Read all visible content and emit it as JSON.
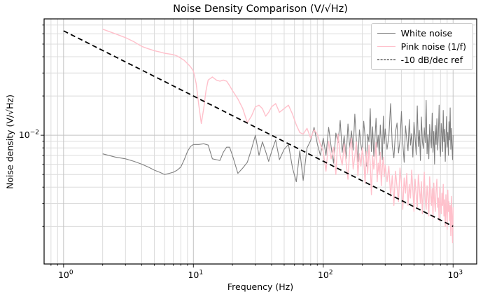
{
  "chart_data": {
    "type": "line",
    "title": "Noise Density Comparison (V/√Hz)",
    "xlabel": "Frequency (Hz)",
    "ylabel": "Noise density (V/√Hz)",
    "x_scale": "log",
    "y_scale": "log",
    "xlim": [
      0.708,
      1520
    ],
    "ylim": [
      0.00103,
      0.078
    ],
    "grid": "both",
    "legend_position": "upper right",
    "colors": {
      "grid_major": "#c3c3c3",
      "grid_minor": "#dcdcdc",
      "spine": "#000000",
      "tick": "#222222",
      "legend_border": "#cccccc"
    },
    "x_major_ticks": [
      {
        "value": 1,
        "base": "10",
        "exp": "0"
      },
      {
        "value": 10,
        "base": "10",
        "exp": "1"
      },
      {
        "value": 100,
        "base": "10",
        "exp": "2"
      },
      {
        "value": 1000,
        "base": "10",
        "exp": "3"
      }
    ],
    "x_minor_ticks": [
      0.8,
      0.9,
      2,
      3,
      4,
      5,
      6,
      7,
      8,
      9,
      20,
      30,
      40,
      50,
      60,
      70,
      80,
      90,
      200,
      300,
      400,
      500,
      600,
      700,
      800,
      900
    ],
    "y_major_ticks": [
      {
        "value": 0.01,
        "base": "10",
        "exp": "−2"
      }
    ],
    "y_minor_ticks": [
      0.002,
      0.003,
      0.004,
      0.005,
      0.006,
      0.007,
      0.008,
      0.009,
      0.02,
      0.03,
      0.04,
      0.05,
      0.06,
      0.07
    ],
    "series": [
      {
        "name": "White noise",
        "color": "#808080",
        "line": "solid",
        "width": 1.1,
        "f": [
          2,
          2.5,
          3,
          3.5,
          4,
          4.5,
          5,
          5.5,
          6,
          6.5,
          7,
          7.5,
          8,
          8.5,
          9,
          9.5,
          10,
          11,
          12,
          13,
          14,
          15,
          16,
          17,
          18,
          19,
          20,
          22,
          24,
          26,
          28,
          30,
          32,
          34,
          36,
          38,
          40,
          43,
          46,
          50,
          54,
          58,
          62,
          66,
          70,
          75,
          80,
          85,
          90,
          95,
          100,
          105,
          110,
          115,
          120,
          125,
          130,
          135,
          140,
          145,
          150,
          155,
          160,
          165,
          170,
          175,
          180,
          185,
          190,
          195,
          200,
          205,
          210,
          215,
          220,
          225,
          230,
          235,
          240,
          245,
          250,
          255,
          260,
          265,
          270,
          275,
          280,
          285,
          290,
          295,
          300,
          310,
          320,
          330,
          340,
          350,
          360,
          370,
          380,
          390,
          400,
          410,
          420,
          430,
          440,
          450,
          460,
          470,
          480,
          490,
          500,
          510,
          520,
          530,
          540,
          550,
          560,
          570,
          580,
          590,
          600,
          610,
          620,
          630,
          640,
          650,
          660,
          670,
          680,
          690,
          700,
          710,
          720,
          730,
          740,
          750,
          760,
          770,
          780,
          790,
          800,
          810,
          820,
          830,
          840,
          850,
          860,
          870,
          880,
          890,
          900,
          910,
          920,
          930,
          940,
          950,
          960,
          970,
          980,
          990,
          1000
        ],
        "v": [
          0.0072,
          0.0068,
          0.0066,
          0.0063,
          0.006,
          0.0057,
          0.0054,
          0.0052,
          0.005,
          0.0051,
          0.0052,
          0.0054,
          0.0057,
          0.0065,
          0.0075,
          0.0082,
          0.0085,
          0.0085,
          0.0086,
          0.0084,
          0.0066,
          0.0065,
          0.0064,
          0.0074,
          0.0081,
          0.0081,
          0.007,
          0.0051,
          0.0056,
          0.0062,
          0.0078,
          0.01,
          0.007,
          0.0089,
          0.0075,
          0.0063,
          0.0075,
          0.0092,
          0.0065,
          0.0078,
          0.0085,
          0.0056,
          0.0044,
          0.0076,
          0.0045,
          0.008,
          0.0091,
          0.0115,
          0.0086,
          0.007,
          0.0095,
          0.007,
          0.0115,
          0.0082,
          0.0061,
          0.0104,
          0.0088,
          0.013,
          0.0074,
          0.0099,
          0.0066,
          0.0122,
          0.008,
          0.0108,
          0.0077,
          0.0145,
          0.0092,
          0.0063,
          0.011,
          0.0085,
          0.0072,
          0.0128,
          0.0097,
          0.0058,
          0.0102,
          0.0089,
          0.016,
          0.0075,
          0.0116,
          0.0069,
          0.0094,
          0.0135,
          0.0081,
          0.01,
          0.007,
          0.012,
          0.009,
          0.0065,
          0.014,
          0.0086,
          0.0112,
          0.0078,
          0.0098,
          0.0175,
          0.0083,
          0.0067,
          0.0106,
          0.0124,
          0.0073,
          0.0091,
          0.0152,
          0.0087,
          0.0062,
          0.0118,
          0.0093,
          0.0076,
          0.0132,
          0.0084,
          0.0103,
          0.0068,
          0.0126,
          0.0096,
          0.0071,
          0.0168,
          0.0082,
          0.0109,
          0.0064,
          0.0138,
          0.009,
          0.0079,
          0.0114,
          0.0088,
          0.0185,
          0.0072,
          0.0101,
          0.0066,
          0.0121,
          0.0095,
          0.008,
          0.0148,
          0.0074,
          0.0107,
          0.006,
          0.0119,
          0.0085,
          0.0134,
          0.0077,
          0.0099,
          0.017,
          0.0083,
          0.0069,
          0.0123,
          0.0104,
          0.0075,
          0.0155,
          0.0089,
          0.0111,
          0.0063,
          0.0097,
          0.0139,
          0.0081,
          0.0105,
          0.007,
          0.0127,
          0.0092,
          0.0162,
          0.0078,
          0.0113,
          0.0086,
          0.0065,
          0.01
        ]
      },
      {
        "name": "Pink noise (1/f)",
        "color": "#ffc0cb",
        "line": "solid",
        "width": 1.4,
        "f": [
          2,
          2.5,
          3,
          3.5,
          4,
          4.5,
          5,
          5.5,
          6,
          6.5,
          7,
          7.5,
          8,
          8.5,
          9,
          9.5,
          10,
          10.5,
          11,
          11.5,
          12,
          12.5,
          13,
          14,
          15,
          16,
          17,
          18,
          19,
          20,
          22,
          24,
          26,
          28,
          30,
          32,
          34,
          36,
          38,
          40,
          43,
          46,
          50,
          54,
          58,
          62,
          66,
          70,
          75,
          80,
          85,
          90,
          95,
          100,
          105,
          110,
          115,
          120,
          125,
          130,
          135,
          140,
          145,
          150,
          155,
          160,
          165,
          170,
          175,
          180,
          185,
          190,
          195,
          200,
          205,
          210,
          215,
          220,
          225,
          230,
          235,
          240,
          245,
          250,
          255,
          260,
          265,
          270,
          275,
          280,
          285,
          290,
          295,
          300,
          310,
          320,
          330,
          340,
          350,
          360,
          370,
          380,
          390,
          400,
          410,
          420,
          430,
          440,
          450,
          460,
          470,
          480,
          490,
          500,
          510,
          520,
          530,
          540,
          550,
          560,
          570,
          580,
          590,
          600,
          610,
          620,
          630,
          640,
          650,
          660,
          670,
          680,
          690,
          700,
          710,
          720,
          730,
          740,
          750,
          760,
          770,
          780,
          790,
          800,
          810,
          820,
          830,
          840,
          850,
          860,
          870,
          880,
          890,
          900,
          910,
          920,
          930,
          940,
          950,
          960,
          970,
          980,
          990,
          1000
        ],
        "v": [
          0.065,
          0.06,
          0.056,
          0.052,
          0.048,
          0.046,
          0.0445,
          0.0435,
          0.0425,
          0.042,
          0.0415,
          0.0405,
          0.039,
          0.0375,
          0.0355,
          0.0335,
          0.031,
          0.025,
          0.017,
          0.0123,
          0.016,
          0.022,
          0.0265,
          0.028,
          0.0265,
          0.026,
          0.0265,
          0.026,
          0.024,
          0.022,
          0.019,
          0.016,
          0.0125,
          0.014,
          0.0165,
          0.017,
          0.016,
          0.014,
          0.015,
          0.0165,
          0.0175,
          0.015,
          0.016,
          0.017,
          0.0145,
          0.012,
          0.0105,
          0.0102,
          0.0113,
          0.0095,
          0.011,
          0.0102,
          0.0085,
          0.0075,
          0.0053,
          0.009,
          0.0066,
          0.0081,
          0.005,
          0.0102,
          0.007,
          0.0059,
          0.0086,
          0.0062,
          0.0046,
          0.0078,
          0.0095,
          0.0055,
          0.0069,
          0.0089,
          0.0049,
          0.0072,
          0.0058,
          0.008,
          0.0064,
          0.0043,
          0.0075,
          0.0051,
          0.0084,
          0.006,
          0.0035,
          0.007,
          0.0055,
          0.0066,
          0.0088,
          0.0044,
          0.0061,
          0.005,
          0.0074,
          0.0041,
          0.0057,
          0.0068,
          0.0048,
          0.0059,
          0.0044,
          0.0058,
          0.0034,
          0.0049,
          0.0029,
          0.0053,
          0.004,
          0.0031,
          0.0056,
          0.0043,
          0.0027,
          0.0047,
          0.0036,
          0.0051,
          0.0029,
          0.0042,
          0.0033,
          0.0054,
          0.0038,
          0.0026,
          0.0046,
          0.0035,
          0.0028,
          0.005,
          0.0039,
          0.003,
          0.0044,
          0.0025,
          0.0037,
          0.0052,
          0.0032,
          0.0027,
          0.0041,
          0.0034,
          0.0024,
          0.0048,
          0.0036,
          0.0029,
          0.0039,
          0.0023,
          0.0043,
          0.0031,
          0.0026,
          0.0038,
          0.0046,
          0.0028,
          0.0033,
          0.0022,
          0.004,
          0.003,
          0.0025,
          0.0036,
          0.0029,
          0.0042,
          0.0024,
          0.0032,
          0.002,
          0.0035,
          0.0027,
          0.0019,
          0.0038,
          0.0026,
          0.0031,
          0.0022,
          0.0029,
          0.0017,
          0.0034,
          0.0025,
          0.0015,
          0.0028
        ]
      },
      {
        "name": "-10 dB/dec ref",
        "color": "#000000",
        "line": "dashed",
        "width": 1.8,
        "f": [
          1,
          1000
        ],
        "v": [
          0.0632,
          0.002
        ]
      }
    ]
  }
}
